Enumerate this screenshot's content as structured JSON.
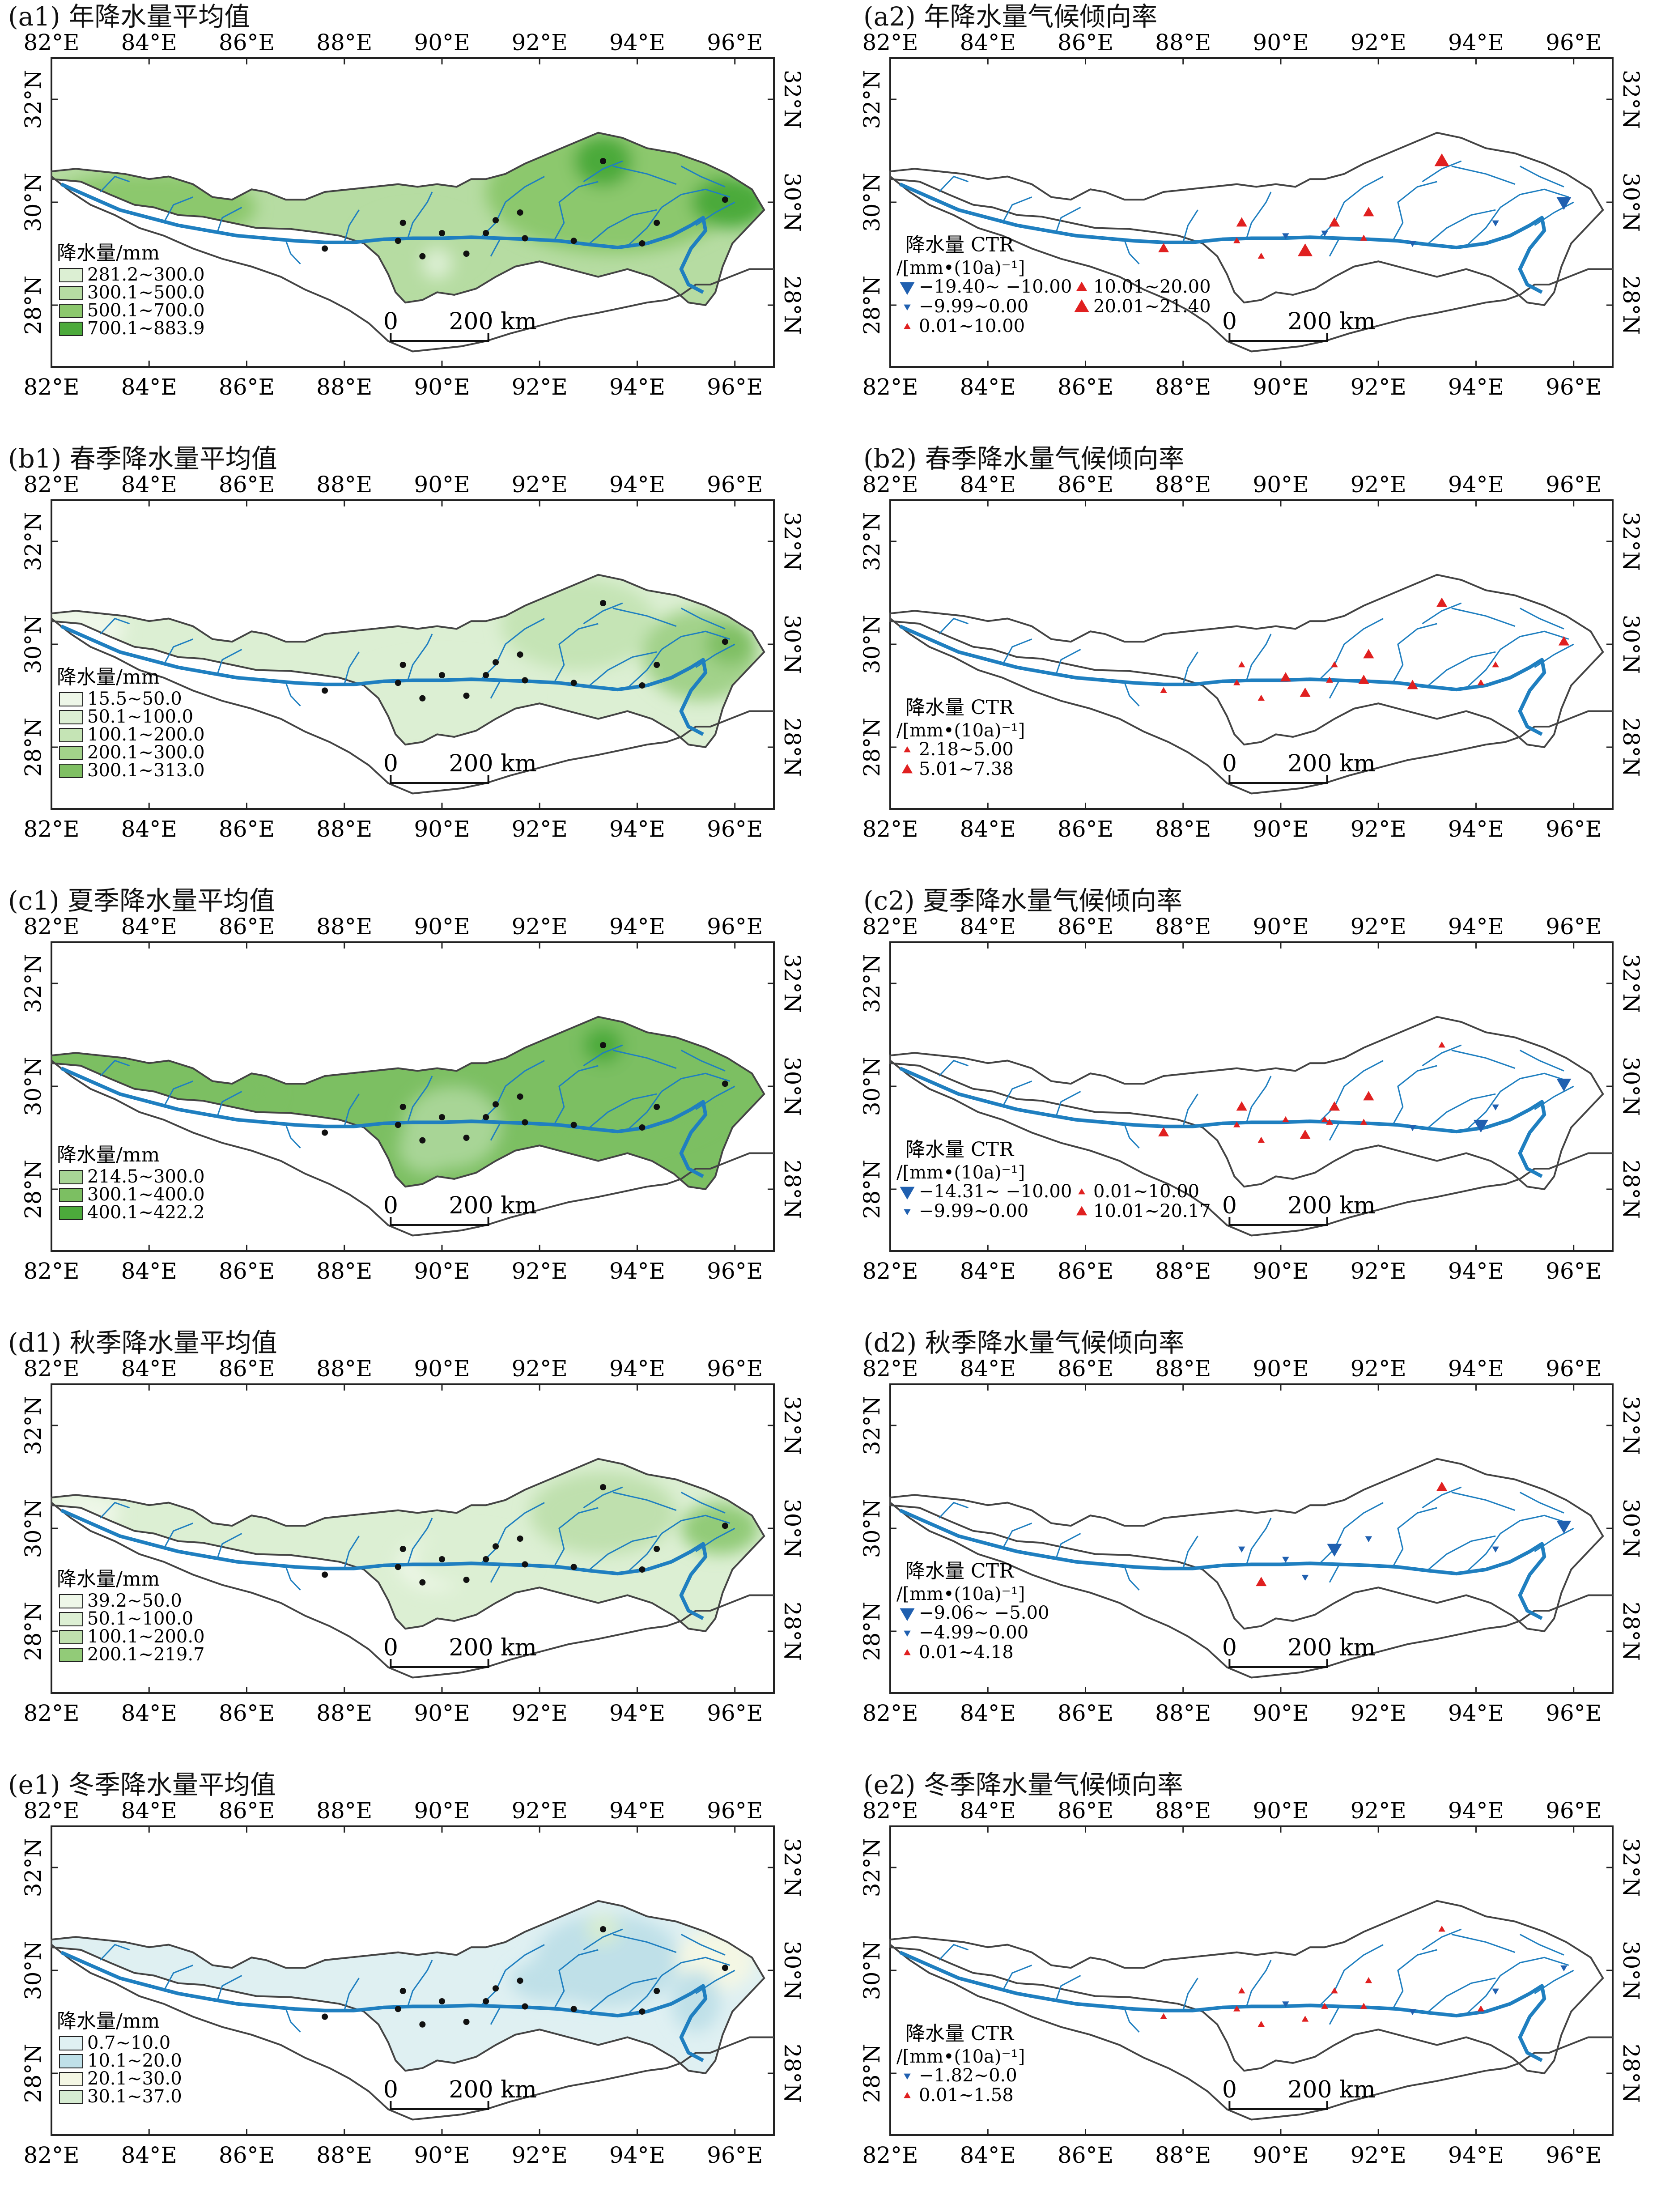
{
  "tick_labels": {
    "lon": [
      "82°E",
      "84°E",
      "86°E",
      "88°E",
      "90°E",
      "92°E",
      "94°E",
      "96°E"
    ],
    "lat": [
      "32°N",
      "30°N",
      "28°N"
    ]
  },
  "scale_bar": {
    "start": "0",
    "end": "200 km"
  },
  "colors": {
    "river": "#1f7fc0",
    "boundary": "#444444",
    "station": "#111111",
    "decrease": "#2060b0",
    "increase": "#e02020",
    "green_1": "#dcefd3",
    "green_2": "#b6dca2",
    "green_3": "#8cc86d",
    "green_4": "#4caa3b",
    "winter_1": "#dff0f2",
    "winter_2": "#bfe0e8",
    "winter_3": "#f4f7e4",
    "winter_4": "#d6ecd2"
  },
  "panels": [
    {
      "id": "a1",
      "label": "(a1)",
      "title": "年降水量平均值",
      "type": "mean",
      "legend": {
        "title": "降水量/mm",
        "unit": "",
        "items": [
          {
            "label": "281.2~300.0",
            "color": "#dcefd3"
          },
          {
            "label": "300.1~500.0",
            "color": "#b6dca2"
          },
          {
            "label": "500.1~700.0",
            "color": "#8cc86d"
          },
          {
            "label": "700.1~883.9",
            "color": "#4caa3b"
          }
        ]
      }
    },
    {
      "id": "a2",
      "label": "(a2)",
      "title": "年降水量气候倾向率",
      "type": "trend",
      "legend": {
        "title": "降水量 CTR",
        "unit": "/[mm•(10a)⁻¹]",
        "items": [
          {
            "label": "−19.40~ −10.00",
            "symbol": "down-large"
          },
          {
            "label": "−9.99~0.00",
            "symbol": "down-small"
          },
          {
            "label": "0.01~10.00",
            "symbol": "up-small"
          },
          {
            "label": "10.01~20.00",
            "symbol": "up-medium"
          },
          {
            "label": "20.01~21.40",
            "symbol": "up-large"
          }
        ]
      }
    },
    {
      "id": "b1",
      "label": "(b1)",
      "title": "春季降水量平均值",
      "type": "mean",
      "legend": {
        "title": "降水量/mm",
        "unit": "",
        "items": [
          {
            "label": "15.5~50.0",
            "color": "#eef7e8"
          },
          {
            "label": "50.1~100.0",
            "color": "#dcefd3"
          },
          {
            "label": "100.1~200.0",
            "color": "#c5e4b5"
          },
          {
            "label": "200.1~300.0",
            "color": "#a2d28a"
          },
          {
            "label": "300.1~313.0",
            "color": "#7fbf63"
          }
        ]
      }
    },
    {
      "id": "b2",
      "label": "(b2)",
      "title": "春季降水量气候倾向率",
      "type": "trend",
      "legend": {
        "title": "降水量 CTR",
        "unit": "/[mm•(10a)⁻¹]",
        "items": [
          {
            "label": "2.18~5.00",
            "symbol": "up-small"
          },
          {
            "label": "5.01~7.38",
            "symbol": "up-medium"
          }
        ]
      }
    },
    {
      "id": "c1",
      "label": "(c1)",
      "title": "夏季降水量平均值",
      "type": "mean",
      "legend": {
        "title": "降水量/mm",
        "unit": "",
        "items": [
          {
            "label": "214.5~300.0",
            "color": "#a8d596"
          },
          {
            "label": "300.1~400.0",
            "color": "#7cbf62"
          },
          {
            "label": "400.1~422.2",
            "color": "#4caa3b"
          }
        ]
      }
    },
    {
      "id": "c2",
      "label": "(c2)",
      "title": "夏季降水量气候倾向率",
      "type": "trend",
      "legend": {
        "title": "降水量 CTR",
        "unit": "/[mm•(10a)⁻¹]",
        "items": [
          {
            "label": "−14.31~ −10.00",
            "symbol": "down-large"
          },
          {
            "label": "−9.99~0.00",
            "symbol": "down-small"
          },
          {
            "label": "0.01~10.00",
            "symbol": "up-small"
          },
          {
            "label": "10.01~20.17",
            "symbol": "up-medium"
          }
        ]
      }
    },
    {
      "id": "d1",
      "label": "(d1)",
      "title": "秋季降水量平均值",
      "type": "mean",
      "legend": {
        "title": "降水量/mm",
        "unit": "",
        "items": [
          {
            "label": "39.2~50.0",
            "color": "#eef7e8"
          },
          {
            "label": "50.1~100.0",
            "color": "#dcefd3"
          },
          {
            "label": "100.1~200.0",
            "color": "#bfe0ae"
          },
          {
            "label": "200.1~219.7",
            "color": "#92cb78"
          }
        ]
      }
    },
    {
      "id": "d2",
      "label": "(d2)",
      "title": "秋季降水量气候倾向率",
      "type": "trend",
      "legend": {
        "title": "降水量 CTR",
        "unit": "/[mm•(10a)⁻¹]",
        "items": [
          {
            "label": "−9.06~ −5.00",
            "symbol": "down-large"
          },
          {
            "label": "−4.99~0.00",
            "symbol": "down-small"
          },
          {
            "label": "0.01~4.18",
            "symbol": "up-small"
          }
        ]
      }
    },
    {
      "id": "e1",
      "label": "(e1)",
      "title": "冬季降水量平均值",
      "type": "mean",
      "legend": {
        "title": "降水量/mm",
        "unit": "",
        "items": [
          {
            "label": "0.7~10.0",
            "color": "#dff0f2"
          },
          {
            "label": "10.1~20.0",
            "color": "#bfe0e8"
          },
          {
            "label": "20.1~30.0",
            "color": "#f4f7e4"
          },
          {
            "label": "30.1~37.0",
            "color": "#d6ecd2"
          }
        ]
      }
    },
    {
      "id": "e2",
      "label": "(e2)",
      "title": "冬季降水量气候倾向率",
      "type": "trend",
      "legend": {
        "title": "降水量 CTR",
        "unit": "/[mm•(10a)⁻¹]",
        "items": [
          {
            "label": "−1.82~0.0",
            "symbol": "down-small"
          },
          {
            "label": "0.01~1.58",
            "symbol": "up-small"
          }
        ]
      }
    }
  ]
}
